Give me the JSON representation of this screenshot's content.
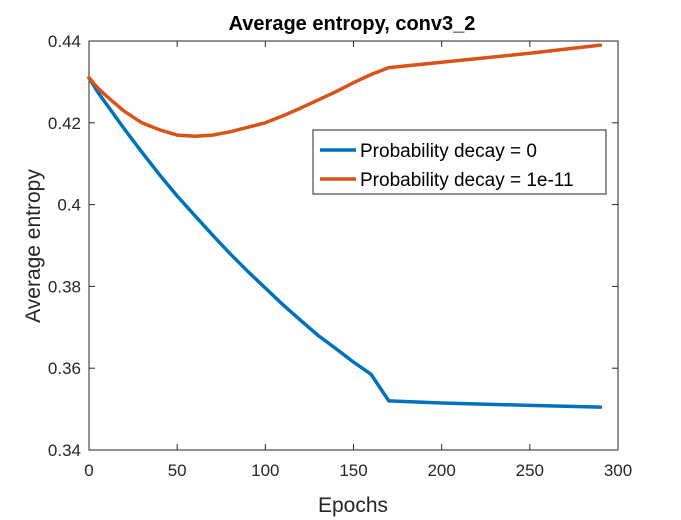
{
  "chart_data": {
    "type": "line",
    "title": "Average entropy, conv3_2",
    "xlabel": "Epochs",
    "ylabel": "Average entropy",
    "xlim": [
      0,
      300
    ],
    "ylim": [
      0.34,
      0.44
    ],
    "xticks": [
      0,
      50,
      100,
      150,
      200,
      250,
      300
    ],
    "yticks": [
      0.34,
      0.36,
      0.38,
      0.4,
      0.42,
      0.44
    ],
    "xtick_labels": [
      "0",
      "50",
      "100",
      "150",
      "200",
      "250",
      "300"
    ],
    "ytick_labels": [
      "0.34",
      "0.36",
      "0.38",
      "0.4",
      "0.42",
      "0.44"
    ],
    "grid": false,
    "legend_position": "upper-right (inside axes)",
    "series": [
      {
        "name": "Probability decay = 0",
        "color": "#0072BD",
        "x": [
          0,
          5,
          10,
          20,
          30,
          40,
          50,
          60,
          70,
          80,
          90,
          100,
          110,
          120,
          130,
          140,
          150,
          160,
          170,
          200,
          250,
          290
        ],
        "y": [
          0.431,
          0.4275,
          0.4245,
          0.4185,
          0.4128,
          0.4073,
          0.4021,
          0.3973,
          0.3926,
          0.388,
          0.3837,
          0.3796,
          0.3755,
          0.3717,
          0.368,
          0.3648,
          0.3615,
          0.3585,
          0.352,
          0.3515,
          0.3509,
          0.3505
        ]
      },
      {
        "name": "Probability decay = 1e-11",
        "color": "#D95319",
        "x": [
          0,
          5,
          10,
          20,
          30,
          40,
          50,
          60,
          70,
          80,
          90,
          100,
          110,
          120,
          130,
          140,
          150,
          160,
          170,
          200,
          250,
          290
        ],
        "y": [
          0.431,
          0.4285,
          0.4265,
          0.4228,
          0.42,
          0.4183,
          0.417,
          0.4167,
          0.417,
          0.4178,
          0.4189,
          0.42,
          0.4217,
          0.4236,
          0.4256,
          0.4276,
          0.4298,
          0.4318,
          0.4335,
          0.4348,
          0.437,
          0.439
        ]
      }
    ]
  }
}
